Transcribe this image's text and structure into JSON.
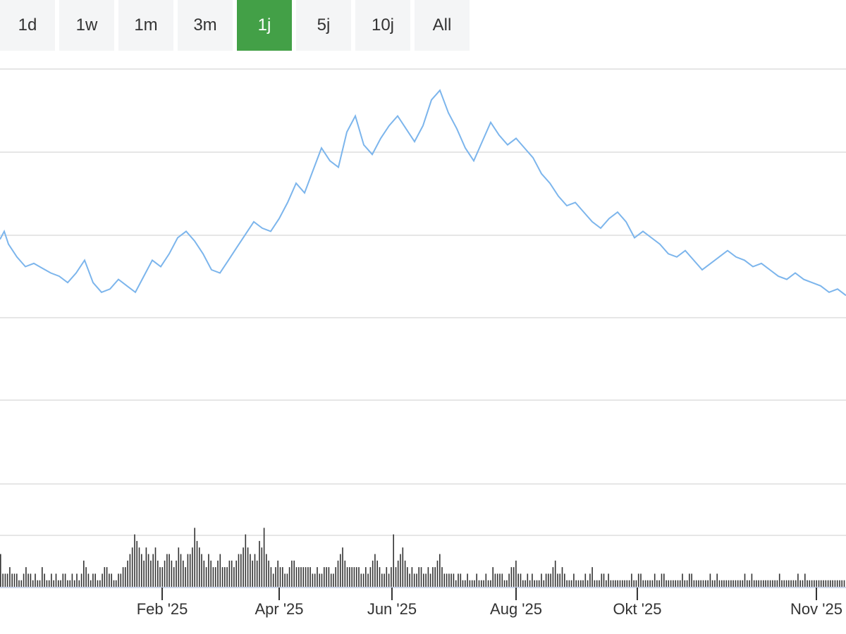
{
  "range_selector": {
    "buttons": [
      "1d",
      "1w",
      "1m",
      "3m",
      "1j",
      "5j",
      "10j",
      "All"
    ],
    "active": "1j"
  },
  "colors": {
    "line": "#7cb5ec",
    "volume": "#333333",
    "active": "#43a047"
  },
  "chart_data": [
    {
      "type": "line",
      "title": "",
      "xlabel": "",
      "ylabel": "",
      "x_tick_labels": [
        "Feb '25",
        "Apr '25",
        "Jun '25",
        "Aug '25",
        "Okt '25",
        "Nov '25"
      ],
      "x_tick_positions": [
        0.1917,
        0.33,
        0.4633,
        0.61,
        0.7533,
        0.965
      ],
      "y_gridlines": 5,
      "ylim": [
        0,
        100
      ],
      "series": [
        {
          "name": "",
          "points": [
            [
              0,
              49.5
            ],
            [
              0.5,
              52
            ],
            [
              1,
              48
            ],
            [
              2,
              44
            ],
            [
              3,
              41
            ],
            [
              4,
              42
            ],
            [
              5,
              40.5
            ],
            [
              6,
              39
            ],
            [
              7,
              38
            ],
            [
              8,
              36
            ],
            [
              9,
              39
            ],
            [
              10,
              43
            ],
            [
              11,
              36
            ],
            [
              12,
              33
            ],
            [
              13,
              34
            ],
            [
              14,
              37
            ],
            [
              15,
              35
            ],
            [
              16,
              33
            ],
            [
              17,
              38
            ],
            [
              18,
              43
            ],
            [
              19,
              41
            ],
            [
              20,
              45
            ],
            [
              21,
              50
            ],
            [
              22,
              52
            ],
            [
              23,
              49
            ],
            [
              24,
              45
            ],
            [
              25,
              40
            ],
            [
              26,
              39
            ],
            [
              27,
              43
            ],
            [
              28,
              47
            ],
            [
              29,
              51
            ],
            [
              30,
              55
            ],
            [
              31,
              53
            ],
            [
              32,
              52
            ],
            [
              33,
              56
            ],
            [
              34,
              61
            ],
            [
              35,
              67
            ],
            [
              36,
              64
            ],
            [
              37,
              71
            ],
            [
              38,
              78
            ],
            [
              39,
              74
            ],
            [
              40,
              72
            ],
            [
              41,
              83
            ],
            [
              42,
              88
            ],
            [
              43,
              79
            ],
            [
              44,
              76
            ],
            [
              45,
              81
            ],
            [
              46,
              85
            ],
            [
              47,
              88
            ],
            [
              48,
              84
            ],
            [
              49,
              80
            ],
            [
              50,
              85
            ],
            [
              51,
              93
            ],
            [
              52,
              96
            ],
            [
              53,
              89
            ],
            [
              54,
              84
            ],
            [
              55,
              78
            ],
            [
              56,
              74
            ],
            [
              57,
              80
            ],
            [
              58,
              86
            ],
            [
              59,
              82
            ],
            [
              60,
              79
            ],
            [
              61,
              81
            ],
            [
              62,
              78
            ],
            [
              63,
              75
            ],
            [
              64,
              70
            ],
            [
              65,
              67
            ],
            [
              66,
              63
            ],
            [
              67,
              60
            ],
            [
              68,
              61
            ],
            [
              69,
              58
            ],
            [
              70,
              55
            ],
            [
              71,
              53
            ],
            [
              72,
              56
            ],
            [
              73,
              58
            ],
            [
              74,
              55
            ],
            [
              75,
              50
            ],
            [
              76,
              52
            ],
            [
              77,
              50
            ],
            [
              78,
              48
            ],
            [
              79,
              45
            ],
            [
              80,
              44
            ],
            [
              81,
              46
            ],
            [
              82,
              43
            ],
            [
              83,
              40
            ],
            [
              84,
              42
            ],
            [
              85,
              44
            ],
            [
              86,
              46
            ],
            [
              87,
              44
            ],
            [
              88,
              43
            ],
            [
              89,
              41
            ],
            [
              90,
              42
            ],
            [
              91,
              40
            ],
            [
              92,
              38
            ],
            [
              93,
              37
            ],
            [
              94,
              39
            ],
            [
              95,
              37
            ],
            [
              96,
              36
            ],
            [
              97,
              35
            ],
            [
              98,
              33
            ],
            [
              99,
              34
            ],
            [
              100,
              32
            ]
          ],
          "value_range": [
            0,
            100
          ]
        }
      ]
    },
    {
      "type": "bar",
      "title": "",
      "series_name": "",
      "values": [
        5,
        2,
        2,
        2,
        3,
        2,
        2,
        2,
        1,
        1,
        2,
        3,
        2,
        2,
        1,
        2,
        1,
        1,
        3,
        2,
        1,
        1,
        2,
        1,
        2,
        1,
        1,
        2,
        2,
        1,
        1,
        2,
        1,
        2,
        1,
        2,
        4,
        3,
        2,
        1,
        2,
        2,
        1,
        1,
        2,
        3,
        3,
        2,
        2,
        1,
        1,
        2,
        2,
        3,
        3,
        4,
        5,
        6,
        8,
        7,
        6,
        5,
        4,
        6,
        5,
        4,
        5,
        6,
        4,
        3,
        3,
        4,
        5,
        5,
        4,
        3,
        4,
        6,
        5,
        4,
        3,
        5,
        5,
        6,
        9,
        7,
        6,
        5,
        4,
        3,
        5,
        4,
        3,
        3,
        4,
        5,
        3,
        3,
        3,
        4,
        4,
        3,
        4,
        5,
        5,
        6,
        8,
        6,
        5,
        4,
        5,
        4,
        7,
        6,
        9,
        5,
        4,
        3,
        2,
        3,
        4,
        3,
        3,
        2,
        2,
        3,
        4,
        4,
        3,
        3,
        3,
        3,
        3,
        3,
        3,
        2,
        2,
        3,
        2,
        2,
        3,
        3,
        3,
        2,
        2,
        3,
        4,
        5,
        6,
        4,
        3,
        3,
        3,
        3,
        3,
        3,
        2,
        2,
        3,
        2,
        3,
        4,
        5,
        4,
        3,
        2,
        2,
        3,
        2,
        3,
        8,
        3,
        4,
        5,
        6,
        4,
        3,
        2,
        3,
        2,
        2,
        3,
        3,
        2,
        2,
        3,
        2,
        3,
        3,
        4,
        5,
        3,
        2,
        2,
        2,
        2,
        2,
        1,
        2,
        2,
        1,
        1,
        2,
        1,
        1,
        1,
        2,
        1,
        1,
        1,
        2,
        1,
        1,
        3,
        2,
        2,
        2,
        2,
        1,
        1,
        2,
        3,
        3,
        4,
        2,
        2,
        1,
        1,
        2,
        1,
        2,
        1,
        1,
        1,
        2,
        1,
        2,
        2,
        2,
        3,
        4,
        2,
        2,
        3,
        2,
        1,
        1,
        1,
        2,
        1,
        1,
        1,
        1,
        2,
        1,
        2,
        3,
        1,
        1,
        1,
        2,
        2,
        1,
        2,
        1,
        1,
        1,
        1,
        1,
        1,
        1,
        1,
        1,
        2,
        1,
        1,
        2,
        2,
        1,
        1,
        1,
        1,
        1,
        2,
        1,
        1,
        2,
        2,
        1,
        1,
        1,
        1,
        1,
        1,
        1,
        2,
        1,
        1,
        2,
        2,
        1,
        1,
        1,
        1,
        1,
        1,
        1,
        2,
        1,
        1,
        2,
        1,
        1,
        1,
        1,
        1,
        1,
        1,
        1,
        1,
        1,
        1,
        2,
        1,
        1,
        2,
        1,
        1,
        1,
        1,
        1,
        1,
        1,
        1,
        1,
        1,
        1,
        2,
        1,
        1,
        1,
        1,
        1,
        1,
        1,
        2,
        1,
        1,
        2,
        1,
        1,
        1,
        1,
        1,
        1,
        1,
        1,
        1,
        1,
        1,
        1,
        1,
        1,
        1,
        1,
        1
      ],
      "ylim": [
        0,
        10
      ]
    }
  ]
}
